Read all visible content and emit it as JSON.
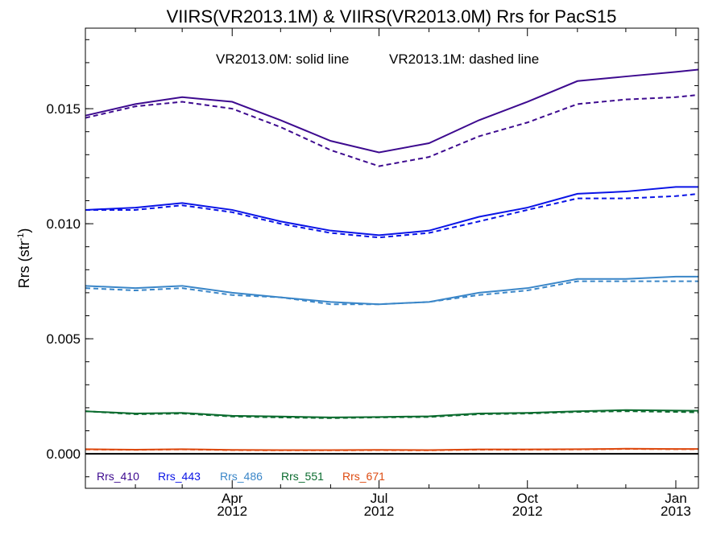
{
  "chart_data": {
    "type": "line",
    "title": "VIIRS(VR2013.1M) & VIIRS(VR2013.0M)  Rrs for PacS15",
    "annotation": {
      "solid": "VR2013.0M: solid line",
      "dashed": "VR2013.1M: dashed line"
    },
    "ylabel": "Rrs (str",
    "ylabel_sup": "-1",
    "ylabel_close": ")",
    "ylim": [
      -0.0015,
      0.0185
    ],
    "yticks": [
      0.0,
      0.005,
      0.01,
      0.015
    ],
    "ytick_labels": [
      "0.000",
      "0.005",
      "0.010",
      "0.015"
    ],
    "xlim": [
      "2012-01-01",
      "2013-01-15"
    ],
    "xticks": [
      {
        "date": "2012-04-01",
        "month": "Apr",
        "year": "2012"
      },
      {
        "date": "2012-07-01",
        "month": "Jul",
        "year": "2012"
      },
      {
        "date": "2012-10-01",
        "month": "Oct",
        "year": "2012"
      },
      {
        "date": "2013-01-01",
        "month": "Jan",
        "year": "2013"
      }
    ],
    "grid": false,
    "zero_line": true,
    "legend_placement": "bottom-left",
    "x": [
      "2012-01-01",
      "2012-02-01",
      "2012-03-01",
      "2012-04-01",
      "2012-05-01",
      "2012-06-01",
      "2012-07-01",
      "2012-08-01",
      "2012-09-01",
      "2012-10-01",
      "2012-11-01",
      "2012-12-01",
      "2013-01-01",
      "2013-01-15"
    ],
    "series": [
      {
        "name": "Rrs_410",
        "color": "#3d0a8f",
        "solid": [
          0.0147,
          0.0152,
          0.0155,
          0.0153,
          0.0145,
          0.0136,
          0.0131,
          0.0135,
          0.0145,
          0.0153,
          0.0162,
          0.0164,
          0.0166,
          0.0167
        ],
        "dashed": [
          0.0146,
          0.0151,
          0.0153,
          0.015,
          0.0142,
          0.0132,
          0.0125,
          0.0129,
          0.0138,
          0.0144,
          0.0152,
          0.0154,
          0.0155,
          0.0156
        ]
      },
      {
        "name": "Rrs_443",
        "color": "#0a14e6",
        "solid": [
          0.0106,
          0.0107,
          0.0109,
          0.0106,
          0.0101,
          0.0097,
          0.0095,
          0.0097,
          0.0103,
          0.0107,
          0.0113,
          0.0114,
          0.0116,
          0.0116
        ],
        "dashed": [
          0.0106,
          0.0106,
          0.0108,
          0.0105,
          0.01,
          0.0096,
          0.0094,
          0.0096,
          0.0101,
          0.0106,
          0.0111,
          0.0111,
          0.0112,
          0.0113
        ]
      },
      {
        "name": "Rrs_486",
        "color": "#3a86c8",
        "solid": [
          0.0073,
          0.0072,
          0.0073,
          0.007,
          0.0068,
          0.0066,
          0.0065,
          0.0066,
          0.007,
          0.0072,
          0.0076,
          0.0076,
          0.0077,
          0.0077
        ],
        "dashed": [
          0.0072,
          0.0071,
          0.0072,
          0.0069,
          0.0068,
          0.0065,
          0.0065,
          0.0066,
          0.0069,
          0.0071,
          0.0075,
          0.0075,
          0.0075,
          0.0075
        ]
      },
      {
        "name": "Rrs_551",
        "color": "#0a6b2e",
        "solid": [
          0.00185,
          0.00175,
          0.00178,
          0.00165,
          0.00162,
          0.00158,
          0.0016,
          0.00163,
          0.00175,
          0.00178,
          0.00185,
          0.0019,
          0.00188,
          0.00187
        ],
        "dashed": [
          0.00185,
          0.00172,
          0.00175,
          0.00162,
          0.00158,
          0.00155,
          0.00158,
          0.0016,
          0.00172,
          0.00175,
          0.00182,
          0.00185,
          0.00182,
          0.0018
        ]
      },
      {
        "name": "Rrs_671",
        "color": "#dd4a10",
        "solid": [
          0.0002,
          0.00018,
          0.0002,
          0.00017,
          0.00016,
          0.00016,
          0.00017,
          0.00016,
          0.00019,
          0.00019,
          0.0002,
          0.00022,
          0.00021,
          0.00021
        ],
        "dashed": [
          0.00019,
          0.00017,
          0.00019,
          0.00016,
          0.00015,
          0.00015,
          0.00016,
          0.00015,
          0.00018,
          0.00018,
          0.00019,
          0.00021,
          0.0002,
          0.0002
        ]
      }
    ]
  }
}
